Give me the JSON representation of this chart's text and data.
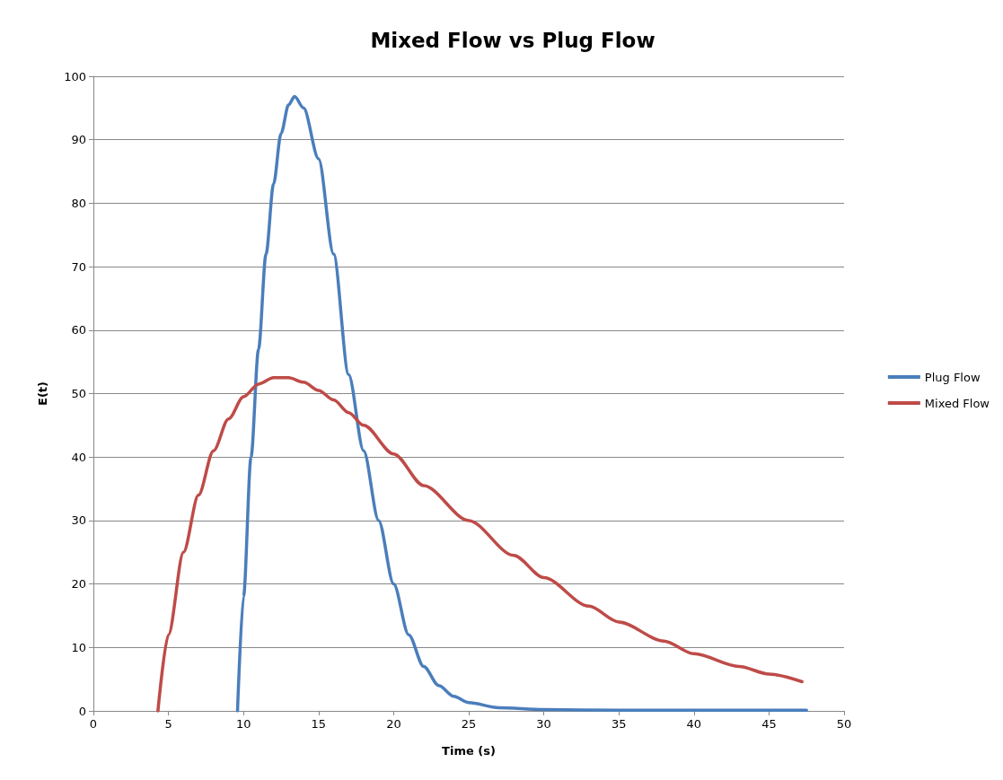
{
  "chart_data": {
    "type": "line",
    "title": "Mixed Flow vs Plug Flow",
    "xlabel": "Time (s)",
    "ylabel": "E(t)",
    "xlim": [
      0,
      50
    ],
    "xticks": [
      0,
      5,
      10,
      15,
      20,
      25,
      30,
      35,
      40,
      45,
      50
    ],
    "ylim": [
      0,
      100
    ],
    "yticks": [
      0,
      10,
      20,
      30,
      40,
      50,
      60,
      70,
      80,
      90,
      100
    ],
    "grid": "y",
    "legend": "right",
    "marker": "none",
    "line_style": "solid",
    "series": [
      {
        "name": "Plug Flow",
        "color": "#4a7ebb",
        "x": [
          9.6,
          10,
          10.5,
          11,
          11.5,
          12,
          12.5,
          13,
          13.4,
          14,
          15,
          16,
          17,
          18,
          19,
          20,
          21,
          22,
          23,
          24,
          25,
          27,
          30,
          35,
          40,
          47.5
        ],
        "values": [
          0,
          18,
          40,
          57,
          72,
          83,
          91,
          95.5,
          96.8,
          95,
          87,
          72,
          53,
          41,
          30,
          20,
          12,
          7,
          4,
          2.3,
          1.3,
          0.5,
          0.2,
          0.1,
          0.1,
          0.1
        ]
      },
      {
        "name": "Mixed Flow",
        "color": "#be4b48",
        "x": [
          4.3,
          5,
          6,
          7,
          8,
          9,
          10,
          11,
          12,
          13,
          14,
          15,
          16,
          17,
          18,
          20,
          22,
          25,
          28,
          30,
          33,
          35,
          38,
          40,
          43,
          45,
          47.2
        ],
        "values": [
          0,
          12,
          25,
          34,
          41,
          46,
          49.5,
          51.5,
          52.5,
          52.5,
          51.8,
          50.5,
          49,
          47,
          45,
          40.5,
          35.5,
          30,
          24.5,
          21,
          16.5,
          14,
          11,
          9,
          7,
          5.8,
          4.6
        ]
      }
    ]
  }
}
